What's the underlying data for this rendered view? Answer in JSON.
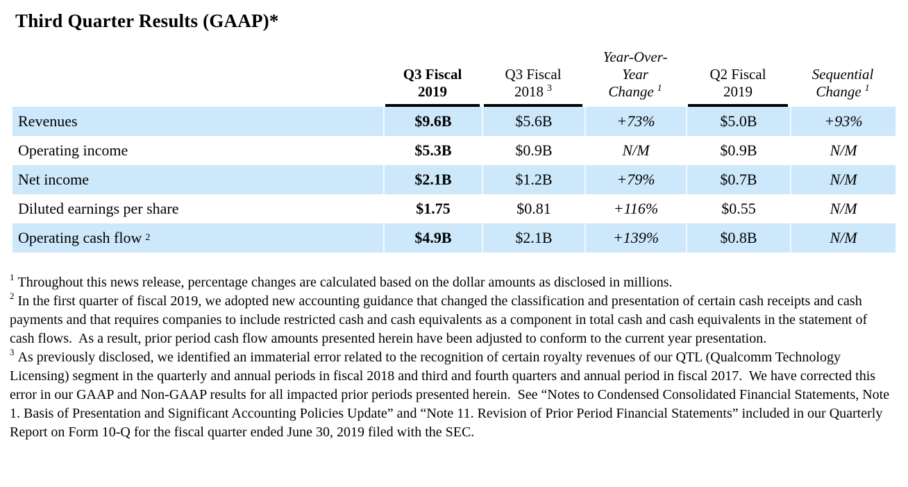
{
  "page": {
    "title": "Third Quarter Results (GAAP)*"
  },
  "colors": {
    "row_stripe_blue": "#cce8fa",
    "header_rule": "#000000",
    "text": "#000000"
  },
  "table": {
    "header": {
      "q3fy19": {
        "line1": "Q3 Fiscal",
        "line2": "2019"
      },
      "q3fy18": {
        "line1": "Q3 Fiscal",
        "line2": "2018",
        "sup": "3"
      },
      "yoy": {
        "line1": "Year-Over-",
        "line2": "Year",
        "line3": "Change",
        "sup": "1"
      },
      "q2fy19": {
        "line1": "Q2 Fiscal",
        "line2": "2019"
      },
      "seq": {
        "line1": "Sequential",
        "line2": "Change",
        "sup": "1"
      }
    },
    "rows": [
      {
        "label": "Revenues",
        "q3fy19": "$9.6B",
        "q3fy18": "$5.6B",
        "yoy": "+73%",
        "q2fy19": "$5.0B",
        "seq": "+93%"
      },
      {
        "label": "Operating income",
        "q3fy19": "$5.3B",
        "q3fy18": "$0.9B",
        "yoy": "N/M",
        "q2fy19": "$0.9B",
        "seq": "N/M"
      },
      {
        "label": "Net income",
        "q3fy19": "$2.1B",
        "q3fy18": "$1.2B",
        "yoy": "+79%",
        "q2fy19": "$0.7B",
        "seq": "N/M"
      },
      {
        "label": "Diluted earnings per share",
        "q3fy19": "$1.75",
        "q3fy18": "$0.81",
        "yoy": "+116%",
        "q2fy19": "$0.55",
        "seq": "N/M"
      },
      {
        "label": "Operating cash flow",
        "label_sup": "2",
        "q3fy19": "$4.9B",
        "q3fy18": "$2.1B",
        "yoy": "+139%",
        "q2fy19": "$0.8B",
        "seq": "N/M"
      }
    ]
  },
  "footnotes": [
    {
      "sup": "1",
      "text": "Throughout this news release, percentage changes are calculated based on the dollar amounts as disclosed in millions."
    },
    {
      "sup": "2",
      "text": "In the first quarter of fiscal 2019, we adopted new accounting guidance that changed the classification and presentation of certain cash receipts and cash payments and that requires companies to include restricted cash and cash equivalents as a component in total cash and cash equivalents in the statement of cash flows.  As a result, prior period cash flow amounts presented herein have been adjusted to conform to the current year presentation."
    },
    {
      "sup": "3",
      "text": "As previously disclosed, we identified an immaterial error related to the recognition of certain royalty revenues of our QTL (Qualcomm Technology Licensing) segment in the quarterly and annual periods in fiscal 2018 and third and fourth quarters and annual period in fiscal 2017.  We have corrected this error in our GAAP and Non-GAAP results for all impacted prior periods presented herein.  See “Notes to Condensed Consolidated Financial Statements, Note 1. Basis of Presentation and Significant Accounting Policies Update” and “Note 11. Revision of Prior Period Financial Statements” included in our Quarterly Report on Form 10-Q for the fiscal quarter ended June 30, 2019 filed with the SEC."
    }
  ]
}
